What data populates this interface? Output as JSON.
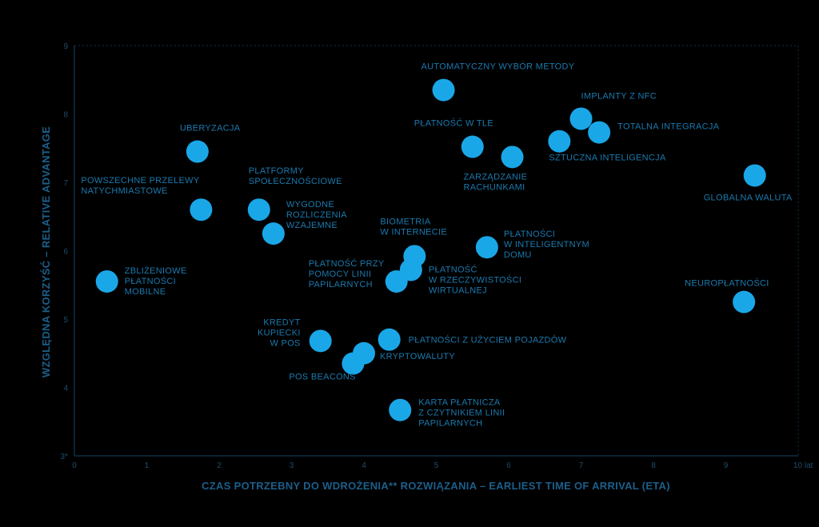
{
  "chart_data": {
    "type": "scatter",
    "xlabel": "CZAS POTRZEBNY DO WDROŻENIA** ROZWIĄZANIA – EARLIEST TIME OF ARRIVAL (ETA)",
    "ylabel": "WZGLĘDNA KORZYŚĆ – RELATIVE ADVANTAGE",
    "xlim": [
      0,
      10
    ],
    "ylim": [
      3,
      9
    ],
    "x_ticks": [
      "0",
      "1",
      "2",
      "3",
      "4",
      "5",
      "6",
      "7",
      "8",
      "9",
      "10 lat"
    ],
    "y_ticks": [
      "3*",
      "4",
      "5",
      "6",
      "7",
      "8",
      "9"
    ],
    "grid": false,
    "point_color": "#1aa7e8",
    "points": [
      {
        "label": [
          "ZBLIŻENIOWE",
          "PŁATNOŚCI",
          "MOBILNE"
        ],
        "x": 0.45,
        "y": 5.55
      },
      {
        "label": [
          "UBERYZACJA"
        ],
        "x": 1.7,
        "y": 7.45
      },
      {
        "label": [
          "POWSZECHNE PRZELEWY",
          "NATYCHMIASTOWE"
        ],
        "x": 1.75,
        "y": 6.6
      },
      {
        "label": [
          "PLATFORMY",
          "SPOŁECZNOŚCIOWE"
        ],
        "x": 2.55,
        "y": 6.6
      },
      {
        "label": [
          "WYGODNE",
          "ROZLICZENIA",
          "WZAJEMNE"
        ],
        "x": 2.75,
        "y": 6.25
      },
      {
        "label": [
          "KREDYT",
          "KUPIECKI",
          "W POS"
        ],
        "x": 3.4,
        "y": 4.68
      },
      {
        "label": [
          "POS BEACONS"
        ],
        "x": 3.85,
        "y": 4.35
      },
      {
        "label": [
          "KRYPTOWALUTY"
        ],
        "x": 4.0,
        "y": 4.5
      },
      {
        "label": [
          "PŁATNOŚCI Z UŻYCIEM POJAZDÓW"
        ],
        "x": 4.35,
        "y": 4.7
      },
      {
        "label": [
          "PŁATNOŚĆ PRZY",
          "POMOCY LINII",
          "PAPILARNYCH"
        ],
        "x": 4.45,
        "y": 5.55
      },
      {
        "label": [
          "KARTA PŁATNICZA",
          "Z CZYTNIKIEM LINII",
          "PAPILARNYCH"
        ],
        "x": 4.5,
        "y": 3.67
      },
      {
        "label": [
          "PŁATNOŚĆ",
          "W RZECZYWISTOŚCI",
          "WIRTUALNEJ"
        ],
        "x": 4.65,
        "y": 5.72
      },
      {
        "label": [
          "BIOMETRIA",
          "W INTERNECIE"
        ],
        "x": 4.7,
        "y": 5.92
      },
      {
        "label": [
          "AUTOMATYCZNY WYBÓR METODY"
        ],
        "x": 5.1,
        "y": 8.35
      },
      {
        "label": [
          "PŁATNOŚĆ W TLE"
        ],
        "x": 5.5,
        "y": 7.52
      },
      {
        "label": [
          "PŁATNOŚCI",
          "W INTELIGENTNYM",
          "DOMU"
        ],
        "x": 5.7,
        "y": 6.05
      },
      {
        "label": [
          "ZARZĄDZANIE",
          "RACHUNKAMI"
        ],
        "x": 6.05,
        "y": 7.37
      },
      {
        "label": [
          "SZTUCZNA INTELIGENCJA"
        ],
        "x": 6.7,
        "y": 7.6
      },
      {
        "label": [
          "IMPLANTY Z NFC"
        ],
        "x": 7.0,
        "y": 7.93
      },
      {
        "label": [
          "TOTALNA INTEGRACJA"
        ],
        "x": 7.25,
        "y": 7.73
      },
      {
        "label": [
          "NEUROPŁATNOŚCI"
        ],
        "x": 9.25,
        "y": 5.25
      },
      {
        "label": [
          "GLOBALNA WALUTA"
        ],
        "x": 9.4,
        "y": 7.1
      }
    ]
  }
}
